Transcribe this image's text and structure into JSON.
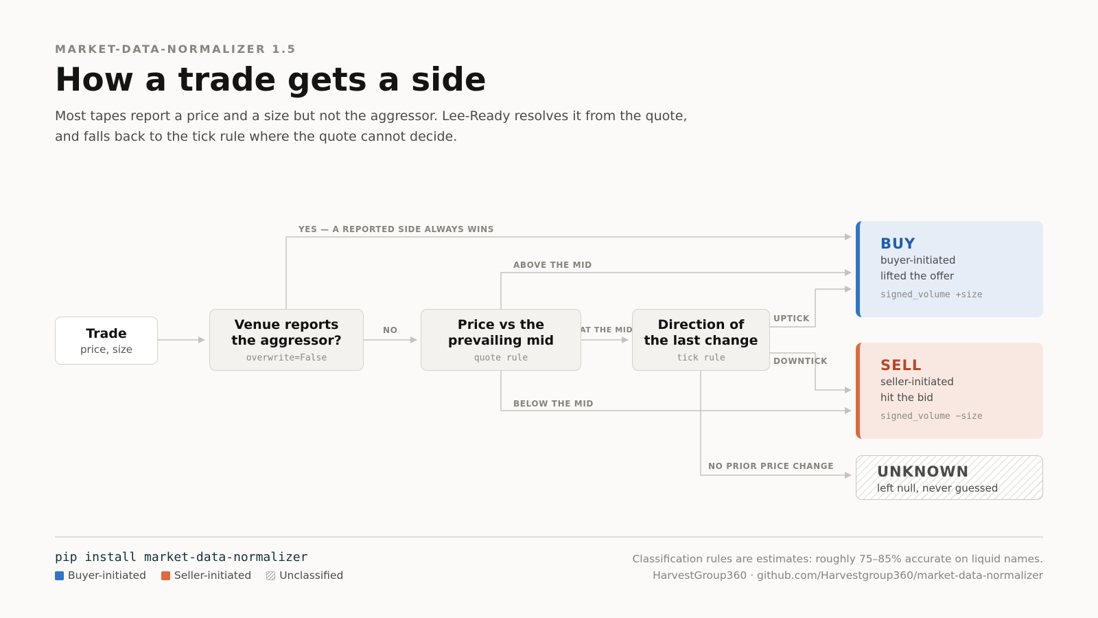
{
  "header": {
    "eyebrow": "MARKET-DATA-NORMALIZER 1.5",
    "title": "How a trade gets a side",
    "subtitle_line1": "Most tapes report a price and a size but not the aggressor. Lee-Ready resolves it from the quote,",
    "subtitle_line2": "and falls back to the tick rule where the quote cannot decide."
  },
  "nodes": {
    "trade": {
      "title": "Trade",
      "sub": "price, size"
    },
    "venue": {
      "title_line1": "Venue reports",
      "title_line2": "the aggressor?",
      "code": "overwrite=False"
    },
    "quote": {
      "title_line1": "Price vs the",
      "title_line2": "prevailing mid",
      "code": "quote rule"
    },
    "tick": {
      "title_line1": "Direction of",
      "title_line2": "the last change",
      "code": "tick rule"
    }
  },
  "edges": {
    "yes": "YES — A REPORTED SIDE ALWAYS WINS",
    "no": "NO",
    "above": "ABOVE THE MID",
    "at": "AT THE MID",
    "below": "BELOW THE MID",
    "uptick": "UPTICK",
    "downtick": "DOWNTICK",
    "no_prior": "NO PRIOR PRICE CHANGE"
  },
  "outcomes": {
    "buy": {
      "title": "BUY",
      "line1": "buyer-initiated",
      "line2": "lifted the offer",
      "code": "signed_volume +size",
      "color": "#2f74c9"
    },
    "sell": {
      "title": "SELL",
      "line1": "seller-initiated",
      "line2": "hit the bid",
      "code": "signed_volume −size",
      "color": "#e06a3c"
    },
    "unknown": {
      "title": "UNKNOWN",
      "line1": "left null, never guessed"
    }
  },
  "footer": {
    "install": "pip install market-data-normalizer",
    "legend": [
      "Buyer-initiated",
      "Seller-initiated",
      "Unclassified"
    ],
    "note_line1": "Classification rules are estimates: roughly 75–85% accurate on liquid names.",
    "note_line2": "HarvestGroup360 · github.com/Harvestgroup360/market-data-normalizer"
  }
}
